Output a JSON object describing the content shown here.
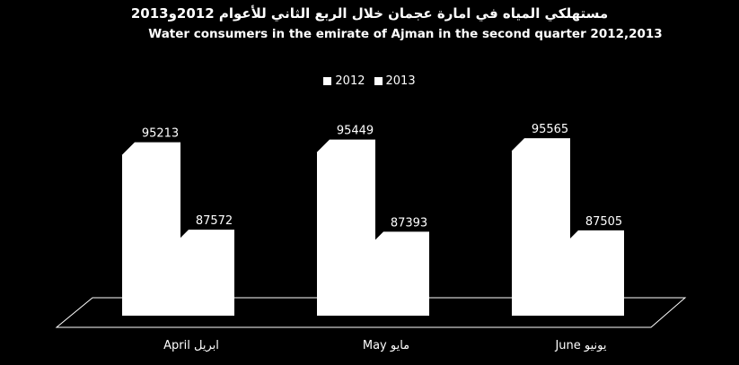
{
  "title_ar": "مستهلكي المياه في امارة عجمان خلال الربع الثاني للأعوام 2012و2013",
  "title_en": "Water consumers in the emirate of Ajman in the second quarter 2012,2013",
  "colors": {
    "background": "#000000",
    "bar_front": "#ffffff",
    "bar_side": "#d9d9d9",
    "bar_top": "#f2f2f2",
    "text": "#ffffff"
  },
  "chart_data": {
    "type": "bar",
    "style": "3d-clustered-column",
    "categories": [
      "April ابريل",
      "May مايو",
      "June يونيو"
    ],
    "series": [
      {
        "name": "2012",
        "values": [
          95213,
          95449,
          95565
        ]
      },
      {
        "name": "2013",
        "values": [
          87572,
          87393,
          87505
        ]
      }
    ],
    "legend_position": "top-center",
    "grid": false
  }
}
